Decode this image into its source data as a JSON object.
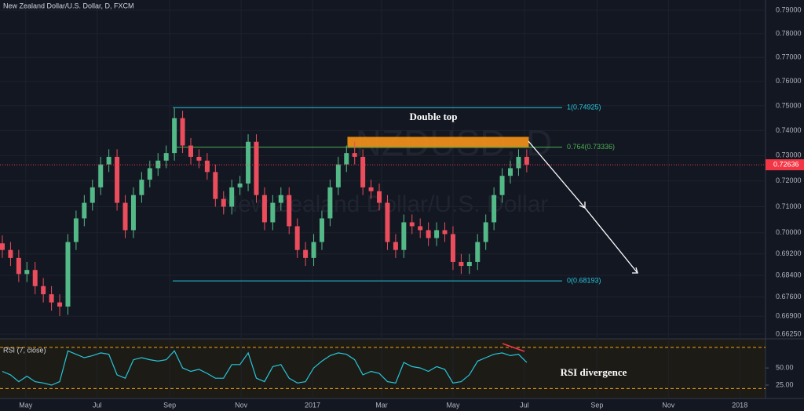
{
  "chart_data": {
    "type": "candlestick",
    "title": "New Zealand Dollar/U.S. Dollar, D, FXCM",
    "watermark": {
      "symbol": "NZDUSD, D",
      "description": "New Zealand Dollar/U.S. Dollar"
    },
    "log": true,
    "grid": true,
    "up_color": "#53b987",
    "down_color": "#eb4d5c",
    "x": [
      "2016-04-11",
      "2016-04-18",
      "2016-04-25",
      "2016-05-02",
      "2016-05-09",
      "2016-05-16",
      "2016-05-23",
      "2016-05-30",
      "2016-06-06",
      "2016-06-13",
      "2016-06-20",
      "2016-06-27",
      "2016-07-04",
      "2016-07-11",
      "2016-07-18",
      "2016-07-25",
      "2016-08-01",
      "2016-08-08",
      "2016-08-15",
      "2016-08-22",
      "2016-08-29",
      "2016-09-05",
      "2016-09-12",
      "2016-09-19",
      "2016-09-26",
      "2016-10-03",
      "2016-10-10",
      "2016-10-17",
      "2016-10-24",
      "2016-10-31",
      "2016-11-07",
      "2016-11-14",
      "2016-11-21",
      "2016-11-28",
      "2016-12-05",
      "2016-12-12",
      "2016-12-19",
      "2016-12-26",
      "2017-01-02",
      "2017-01-09",
      "2017-01-16",
      "2017-01-23",
      "2017-01-30",
      "2017-02-06",
      "2017-02-13",
      "2017-02-20",
      "2017-02-27",
      "2017-03-06",
      "2017-03-13",
      "2017-03-20",
      "2017-03-27",
      "2017-04-03",
      "2017-04-10",
      "2017-04-17",
      "2017-04-24",
      "2017-05-01",
      "2017-05-08",
      "2017-05-15",
      "2017-05-22",
      "2017-05-29",
      "2017-06-05",
      "2017-06-12",
      "2017-06-19",
      "2017-06-26",
      "2017-07-03"
    ],
    "open": [
      0.696,
      0.6935,
      0.6905,
      0.6845,
      0.686,
      0.68,
      0.677,
      0.674,
      0.6725,
      0.6965,
      0.7055,
      0.7115,
      0.7175,
      0.7265,
      0.7295,
      0.7115,
      0.701,
      0.7145,
      0.7205,
      0.725,
      0.728,
      0.731,
      0.745,
      0.734,
      0.7295,
      0.728,
      0.7235,
      0.713,
      0.71,
      0.7175,
      0.719,
      0.7355,
      0.7145,
      0.704,
      0.7115,
      0.7145,
      0.7025,
      0.6935,
      0.6905,
      0.6965,
      0.7055,
      0.7175,
      0.7265,
      0.731,
      0.7295,
      0.7175,
      0.716,
      0.7115,
      0.6965,
      0.6935,
      0.704,
      0.7025,
      0.701,
      0.698,
      0.701,
      0.6995,
      0.689,
      0.6875,
      0.689,
      0.6965,
      0.704,
      0.7145,
      0.722,
      0.725,
      0.7295
    ],
    "high": [
      0.699,
      0.6965,
      0.6935,
      0.689,
      0.689,
      0.683,
      0.68,
      0.677,
      0.6995,
      0.7085,
      0.7145,
      0.7205,
      0.7295,
      0.7325,
      0.7325,
      0.7145,
      0.7175,
      0.7235,
      0.728,
      0.731,
      0.734,
      0.749,
      0.748,
      0.737,
      0.7325,
      0.731,
      0.7265,
      0.716,
      0.7205,
      0.722,
      0.7385,
      0.7385,
      0.7175,
      0.7145,
      0.7175,
      0.7175,
      0.7055,
      0.6965,
      0.6995,
      0.7085,
      0.7205,
      0.7295,
      0.734,
      0.7355,
      0.7325,
      0.7205,
      0.719,
      0.7145,
      0.6995,
      0.707,
      0.707,
      0.7055,
      0.704,
      0.704,
      0.704,
      0.7025,
      0.692,
      0.692,
      0.6995,
      0.707,
      0.7175,
      0.725,
      0.728,
      0.7325,
      0.7325
    ],
    "low": [
      0.6905,
      0.6875,
      0.6815,
      0.6815,
      0.677,
      0.674,
      0.671,
      0.669,
      0.6695,
      0.6935,
      0.7025,
      0.7085,
      0.7145,
      0.7235,
      0.7085,
      0.698,
      0.698,
      0.7115,
      0.7175,
      0.722,
      0.725,
      0.728,
      0.731,
      0.7265,
      0.725,
      0.7205,
      0.71,
      0.707,
      0.707,
      0.7145,
      0.716,
      0.7115,
      0.701,
      0.701,
      0.7085,
      0.6995,
      0.6905,
      0.6875,
      0.6875,
      0.6935,
      0.7025,
      0.7145,
      0.7235,
      0.7265,
      0.7145,
      0.713,
      0.7085,
      0.6935,
      0.6905,
      0.6905,
      0.6995,
      0.698,
      0.695,
      0.695,
      0.6965,
      0.686,
      0.6845,
      0.6845,
      0.686,
      0.6935,
      0.701,
      0.7115,
      0.719,
      0.722,
      0.7234
    ],
    "close": [
      0.6935,
      0.6905,
      0.6845,
      0.686,
      0.68,
      0.677,
      0.674,
      0.6725,
      0.6965,
      0.7055,
      0.7115,
      0.7175,
      0.7265,
      0.7295,
      0.7115,
      0.701,
      0.7145,
      0.7205,
      0.725,
      0.728,
      0.731,
      0.745,
      0.734,
      0.7295,
      0.728,
      0.7235,
      0.713,
      0.71,
      0.7175,
      0.719,
      0.7355,
      0.7145,
      0.704,
      0.7115,
      0.7145,
      0.7025,
      0.6935,
      0.6905,
      0.6965,
      0.7055,
      0.7175,
      0.7265,
      0.731,
      0.7295,
      0.7175,
      0.716,
      0.7115,
      0.6965,
      0.6935,
      0.704,
      0.7025,
      0.701,
      0.698,
      0.701,
      0.6995,
      0.689,
      0.6875,
      0.689,
      0.6965,
      0.704,
      0.7145,
      0.722,
      0.725,
      0.7295,
      0.7264
    ],
    "xlim": [
      "2016-04-09",
      "2018-01-23"
    ],
    "ylim": [
      0.6608,
      0.7944
    ],
    "yticks": [
      {
        "value": 0.79,
        "label": "0.79000"
      },
      {
        "value": 0.78,
        "label": "0.78000"
      },
      {
        "value": 0.77,
        "label": "0.77000"
      },
      {
        "value": 0.76,
        "label": "0.76000"
      },
      {
        "value": 0.75,
        "label": "0.75000"
      },
      {
        "value": 0.74,
        "label": "0.74000"
      },
      {
        "value": 0.73,
        "label": "0.73000"
      },
      {
        "value": 0.72,
        "label": "0.72000"
      },
      {
        "value": 0.71,
        "label": "0.71000"
      },
      {
        "value": 0.7,
        "label": "0.70000"
      },
      {
        "value": 0.692,
        "label": "0.69200"
      },
      {
        "value": 0.684,
        "label": "0.68400"
      },
      {
        "value": 0.676,
        "label": "0.67600"
      },
      {
        "value": 0.669,
        "label": "0.66900"
      },
      {
        "value": 0.6625,
        "label": "0.66250"
      }
    ],
    "xticks": [
      {
        "value": "2016-05-01",
        "label": "May"
      },
      {
        "value": "2016-07-01",
        "label": "Jul"
      },
      {
        "value": "2016-09-01",
        "label": "Sep"
      },
      {
        "value": "2016-11-01",
        "label": "Nov"
      },
      {
        "value": "2017-01-01",
        "label": "2017"
      },
      {
        "value": "2017-03-01",
        "label": "Mar"
      },
      {
        "value": "2017-05-01",
        "label": "May"
      },
      {
        "value": "2017-07-01",
        "label": "Jul"
      },
      {
        "value": "2017-09-01",
        "label": "Sep"
      },
      {
        "value": "2017-11-01",
        "label": "Nov"
      },
      {
        "value": "2018-01-01",
        "label": "2018"
      }
    ],
    "last_price": {
      "value": 0.72636,
      "label": "0.72636"
    },
    "fib_levels": [
      {
        "value": 0.74925,
        "label": "1(0.74925)",
        "color": "#26c6da"
      },
      {
        "value": 0.73336,
        "label": "0.764(0.73336)",
        "color": "#4caf50"
      },
      {
        "value": 0.68193,
        "label": "0(0.68193)",
        "color": "#26c6da"
      }
    ],
    "annotations": [
      "Double top",
      "RSI divergence"
    ],
    "rsi": {
      "name": "RSI (7, close)",
      "color": "#26c6da",
      "band_color": "#f7a21b",
      "values": [
        45,
        40,
        30,
        38,
        30,
        28,
        25,
        30,
        75,
        70,
        65,
        68,
        72,
        70,
        40,
        35,
        62,
        65,
        62,
        60,
        62,
        75,
        50,
        45,
        48,
        42,
        35,
        35,
        55,
        55,
        72,
        35,
        30,
        52,
        55,
        35,
        28,
        30,
        50,
        60,
        68,
        72,
        70,
        62,
        40,
        45,
        42,
        30,
        28,
        58,
        52,
        50,
        45,
        52,
        48,
        28,
        30,
        40,
        60,
        65,
        70,
        72,
        68,
        70,
        58
      ],
      "ylim": [
        5.5,
        92.5
      ],
      "bands": [
        80,
        20
      ],
      "yticks": [
        {
          "value": 50,
          "label": "50.00"
        },
        {
          "value": 25,
          "label": "25.00"
        }
      ]
    }
  }
}
